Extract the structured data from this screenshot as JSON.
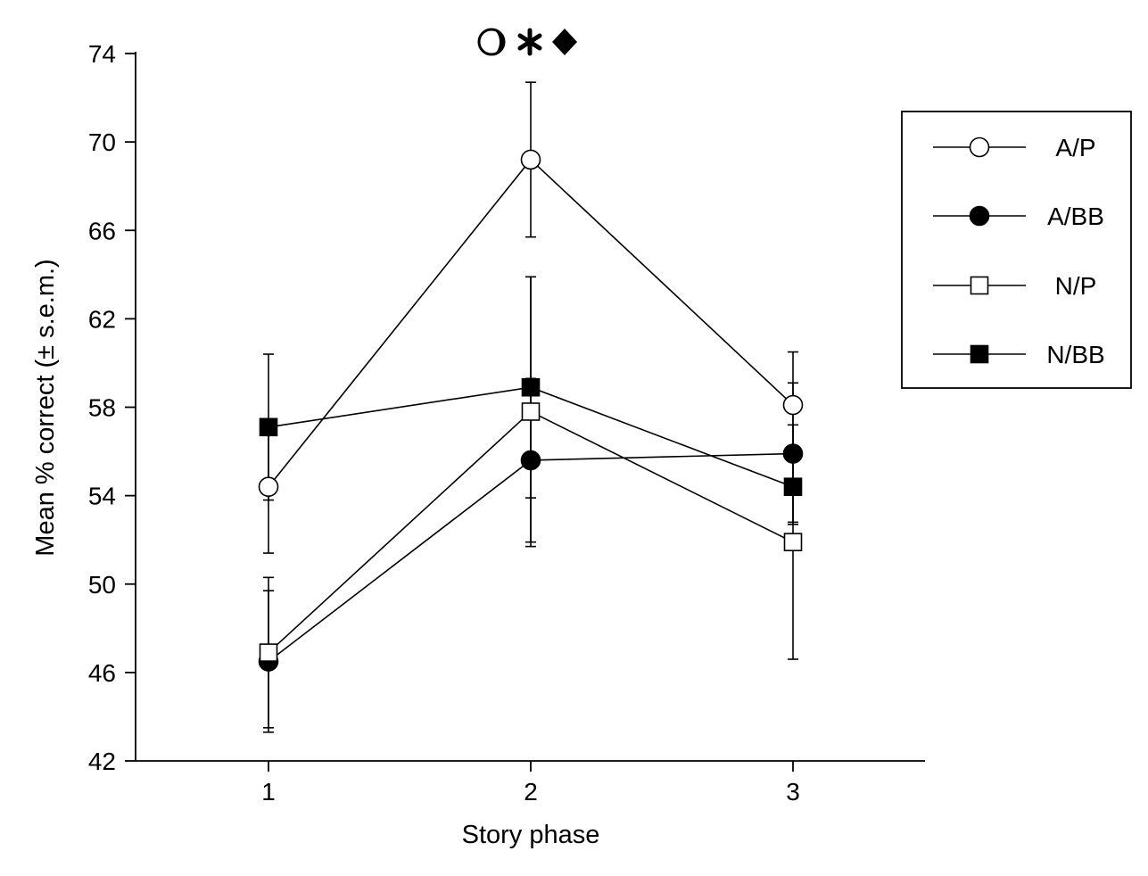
{
  "chart_data": {
    "type": "line",
    "xlabel": "Story phase",
    "ylabel": "Mean % correct (± s.e.m.)",
    "x": [
      1,
      2,
      3
    ],
    "xlim": [
      0.5,
      3.5
    ],
    "ylim": [
      42,
      74
    ],
    "xticks": [
      "1",
      "2",
      "3"
    ],
    "yticks": [
      42,
      46,
      50,
      54,
      58,
      62,
      66,
      70,
      74
    ],
    "legend_position": "right",
    "significance_markers": [
      "circle",
      "asterisk",
      "diamond"
    ],
    "series": [
      {
        "name": "A/P",
        "marker": "open-circle",
        "values": [
          54.4,
          69.2,
          58.1
        ],
        "sem": [
          3.0,
          3.5,
          2.4
        ]
      },
      {
        "name": "A/BB",
        "marker": "filled-circle",
        "values": [
          46.5,
          55.6,
          55.9
        ],
        "sem": [
          3.2,
          3.7,
          3.2
        ]
      },
      {
        "name": "N/P",
        "marker": "open-square",
        "values": [
          46.9,
          57.8,
          51.9
        ],
        "sem": [
          3.4,
          6.1,
          5.3
        ]
      },
      {
        "name": "N/BB",
        "marker": "filled-square",
        "values": [
          57.1,
          58.9,
          54.4
        ],
        "sem": [
          3.3,
          5.0,
          1.6
        ]
      }
    ]
  }
}
